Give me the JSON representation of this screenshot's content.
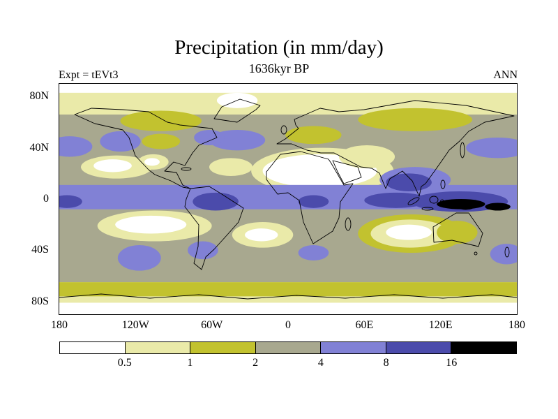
{
  "header": {
    "title": "Precipitation (in mm/day)",
    "subtitle": "1636kyr BP",
    "experiment": "Expt = tEVt3",
    "season": "ANN"
  },
  "axes": {
    "lat": {
      "labels": [
        "80N",
        "40N",
        "0",
        "40S",
        "80S"
      ],
      "values": [
        80,
        40,
        0,
        -40,
        -80
      ]
    },
    "lon": {
      "labels": [
        "180",
        "120W",
        "60W",
        "0",
        "60E",
        "120E",
        "180"
      ],
      "values": [
        -180,
        -120,
        -60,
        0,
        60,
        120,
        180
      ]
    }
  },
  "colorbar": {
    "labels": [
      "0.5",
      "1",
      "2",
      "4",
      "8",
      "16"
    ],
    "colors": [
      "#ffffff",
      "#eaeaa9",
      "#c2c22f",
      "#a8a88f",
      "#8181d5",
      "#4b4bab",
      "#000000"
    ]
  },
  "chart_data": {
    "type": "heatmap",
    "title": "Precipitation (in mm/day)",
    "subtitle": "1636kyr BP",
    "experiment": "tEVt3",
    "season": "ANN",
    "units": "mm/day",
    "projection": "equirectangular world map with coastlines",
    "lon_range": [
      -180,
      180
    ],
    "lat_range": [
      -90,
      90
    ],
    "lon_ticks": [
      "180",
      "120W",
      "60W",
      "0",
      "60E",
      "120E",
      "180"
    ],
    "lat_ticks": [
      "80N",
      "40N",
      "0",
      "40S",
      "80S"
    ],
    "contour_levels": [
      0.5,
      1,
      2,
      4,
      8,
      16
    ],
    "level_bins": [
      "<0.5",
      "0.5-1",
      "1-2",
      "2-4",
      "4-8",
      "8-16",
      ">16"
    ],
    "level_colors": [
      "#ffffff",
      "#eaeaa9",
      "#c2c22f",
      "#a8a88f",
      "#8181d5",
      "#4b4bab",
      "#000000"
    ],
    "legend_position": "bottom",
    "features": [
      {
        "name": "global-base",
        "shape": "band",
        "lat_from": 90,
        "lat_to": -90,
        "level": 1
      },
      {
        "name": "arctic-cap",
        "shape": "band",
        "lat_from": 90,
        "lat_to": 83,
        "level": 0
      },
      {
        "name": "midlat-gray-belt",
        "shape": "band",
        "lat_from": 66,
        "lat_to": -65,
        "level": 3
      },
      {
        "name": "subpolar-south-olive-band",
        "shape": "band",
        "lat_from": -65,
        "lat_to": -76,
        "level": 2
      },
      {
        "name": "antarctic-interior",
        "shape": "band",
        "lat_from": -81,
        "lat_to": -90,
        "level": 0
      },
      {
        "name": "greenland-dry",
        "shape": "ellipse",
        "lon": -40,
        "lat": 77,
        "rlon": 16,
        "rlat": 6,
        "level": 0
      },
      {
        "name": "siberia-olive",
        "shape": "ellipse",
        "lon": 100,
        "lat": 62,
        "rlon": 45,
        "rlat": 9,
        "level": 2
      },
      {
        "name": "canada-olive",
        "shape": "ellipse",
        "lon": -100,
        "lat": 61,
        "rlon": 32,
        "rlat": 8,
        "level": 2
      },
      {
        "name": "europe-olive",
        "shape": "ellipse",
        "lon": 20,
        "lat": 50,
        "rlon": 22,
        "rlat": 7,
        "level": 2
      },
      {
        "name": "plains-olive",
        "shape": "ellipse",
        "lon": -100,
        "lat": 45,
        "rlon": 15,
        "rlat": 6,
        "level": 2
      },
      {
        "name": "npac-west-stormtrack",
        "shape": "ellipse",
        "lon": 165,
        "lat": 40,
        "rlon": 25,
        "rlat": 8,
        "level": 4
      },
      {
        "name": "npac-west-stormtrack-wrap",
        "shape": "ellipse",
        "lon": -172,
        "lat": 41,
        "rlon": 18,
        "rlat": 8,
        "level": 4
      },
      {
        "name": "npac-east-stormtrack",
        "shape": "ellipse",
        "lon": -132,
        "lat": 45,
        "rlon": 16,
        "rlat": 8,
        "level": 4
      },
      {
        "name": "natl-stormtrack",
        "shape": "ellipse",
        "lon": -40,
        "lat": 46,
        "rlon": 22,
        "rlat": 8,
        "level": 4
      },
      {
        "name": "natl-coast-stormtrack",
        "shape": "ellipse",
        "lon": -62,
        "lat": 48,
        "rlon": 12,
        "rlat": 6,
        "level": 4
      },
      {
        "name": "sahara-arabia-ring",
        "shape": "ellipse",
        "lon": 27,
        "lat": 22,
        "rlon": 56,
        "rlat": 18,
        "level": 1
      },
      {
        "name": "sahara-arabia-core",
        "shape": "ellipse",
        "lon": 25,
        "lat": 22,
        "rlon": 45,
        "rlat": 13,
        "level": 0
      },
      {
        "name": "centralasia-dry",
        "shape": "ellipse",
        "lon": 62,
        "lat": 33,
        "rlon": 22,
        "rlat": 9,
        "level": 1
      },
      {
        "name": "nepac-dry-ring",
        "shape": "ellipse",
        "lon": -135,
        "lat": 25,
        "rlon": 28,
        "rlat": 9,
        "level": 1
      },
      {
        "name": "nepac-dry-core",
        "shape": "ellipse",
        "lon": -138,
        "lat": 26,
        "rlon": 15,
        "rlat": 5,
        "level": 0
      },
      {
        "name": "natl-subtropic-dry",
        "shape": "ellipse",
        "lon": -45,
        "lat": 25,
        "rlon": 17,
        "rlat": 7,
        "level": 1
      },
      {
        "name": "swus-dry",
        "shape": "ellipse",
        "lon": -106,
        "lat": 29,
        "rlon": 12,
        "rlat": 6,
        "level": 1
      },
      {
        "name": "swus-dry-core",
        "shape": "ellipse",
        "lon": -107,
        "lat": 29,
        "rlon": 6,
        "rlat": 3,
        "level": 0
      },
      {
        "name": "itcz-band",
        "shape": "band",
        "lat_from": 11,
        "lat_to": -8,
        "level": 4
      },
      {
        "name": "monsoon-asia-outer",
        "shape": "ellipse",
        "lon": 100,
        "lat": 15,
        "rlon": 28,
        "rlat": 10,
        "level": 4
      },
      {
        "name": "monsoon-asia",
        "shape": "ellipse",
        "lon": 95,
        "lat": 13,
        "rlon": 18,
        "rlat": 7,
        "level": 5
      },
      {
        "name": "wpac-warmpool",
        "shape": "ellipse",
        "lon": 135,
        "lat": -2,
        "rlon": 38,
        "rlat": 8,
        "level": 5
      },
      {
        "name": "indian-ocean-wet",
        "shape": "ellipse",
        "lon": 85,
        "lat": -1,
        "rlon": 25,
        "rlat": 6,
        "level": 5
      },
      {
        "name": "amazon-wet",
        "shape": "ellipse",
        "lon": -57,
        "lat": -2,
        "rlon": 18,
        "rlat": 7,
        "level": 5
      },
      {
        "name": "congo-wet",
        "shape": "ellipse",
        "lon": 20,
        "lat": -2,
        "rlon": 12,
        "rlat": 5,
        "level": 5
      },
      {
        "name": "pac-west-edge-wet",
        "shape": "ellipse",
        "lon": -174,
        "lat": -2,
        "rlon": 12,
        "rlat": 5,
        "level": 5
      },
      {
        "name": "maritime-extreme",
        "shape": "ellipse",
        "lon": 136,
        "lat": -4,
        "rlon": 19,
        "rlat": 4,
        "level": 6
      },
      {
        "name": "wpac-extreme",
        "shape": "ellipse",
        "lon": 165,
        "lat": -6,
        "rlon": 10,
        "rlat": 3,
        "level": 6
      },
      {
        "name": "sepac-dry-ring",
        "shape": "ellipse",
        "lon": -105,
        "lat": -21,
        "rlon": 45,
        "rlat": 12,
        "level": 1
      },
      {
        "name": "sepac-dry-core",
        "shape": "ellipse",
        "lon": -108,
        "lat": -20,
        "rlon": 28,
        "rlat": 7,
        "level": 0
      },
      {
        "name": "satl-dry-ring",
        "shape": "ellipse",
        "lon": -20,
        "lat": -28,
        "rlon": 24,
        "rlat": 10,
        "level": 1
      },
      {
        "name": "satl-dry-core",
        "shape": "ellipse",
        "lon": -21,
        "lat": -28,
        "rlon": 13,
        "rlat": 5,
        "level": 0
      },
      {
        "name": "sindian-olive-ring",
        "shape": "ellipse",
        "lon": 97,
        "lat": -27,
        "rlon": 42,
        "rlat": 15,
        "level": 2
      },
      {
        "name": "sindian-dry-ring",
        "shape": "ellipse",
        "lon": 96,
        "lat": -27,
        "rlon": 31,
        "rlat": 11,
        "level": 1
      },
      {
        "name": "sindian-dry-core",
        "shape": "ellipse",
        "lon": 95,
        "lat": -26,
        "rlon": 18,
        "rlat": 6,
        "level": 0
      },
      {
        "name": "australia-olive",
        "shape": "ellipse",
        "lon": 133,
        "lat": -26,
        "rlon": 16,
        "rlat": 9,
        "level": 2
      },
      {
        "name": "sepac-stormtrack",
        "shape": "ellipse",
        "lon": -117,
        "lat": -46,
        "rlon": 17,
        "rlat": 10,
        "level": 4
      },
      {
        "name": "seamerica-wet",
        "shape": "ellipse",
        "lon": -67,
        "lat": -40,
        "rlon": 12,
        "rlat": 7,
        "level": 4
      },
      {
        "name": "nz-stormtrack",
        "shape": "ellipse",
        "lon": 172,
        "lat": -43,
        "rlon": 13,
        "rlat": 8,
        "level": 4
      },
      {
        "name": "safrica-stormtrack",
        "shape": "ellipse",
        "lon": 20,
        "lat": -42,
        "rlon": 12,
        "rlat": 6,
        "level": 4
      }
    ]
  }
}
